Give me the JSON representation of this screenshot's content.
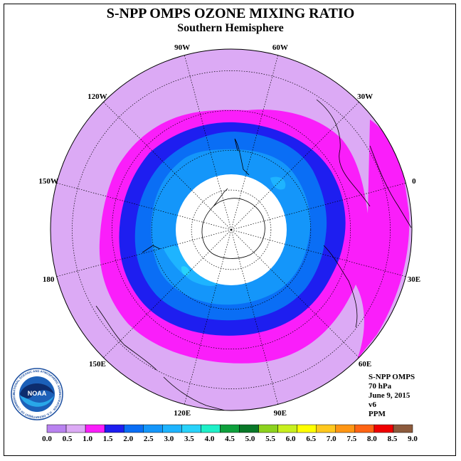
{
  "title": "S-NPP OMPS OZONE MIXING RATIO",
  "subtitle": "Southern Hemisphere",
  "longitude_labels": [
    "90W",
    "60W",
    "30W",
    "0",
    "30E",
    "60E",
    "90E",
    "120E",
    "150E",
    "180",
    "150W",
    "120W"
  ],
  "info": {
    "instrument": "S-NPP OMPS",
    "level": "70 hPa",
    "date": "June 9, 2015",
    "version": "v6",
    "units": "PPM"
  },
  "logo": {
    "text": "NOAA",
    "ring_text": "NATIONAL OCEANIC AND ATMOSPHERIC ADMINISTRATION · U.S. DEPARTMENT OF COMMERCE"
  },
  "colorbar": {
    "ticks": [
      "0.0",
      "0.5",
      "1.0",
      "1.5",
      "2.0",
      "2.5",
      "3.0",
      "3.5",
      "4.0",
      "4.5",
      "5.0",
      "5.5",
      "6.0",
      "6.5",
      "7.0",
      "7.5",
      "8.0",
      "8.5",
      "9.0"
    ],
    "colors": [
      "#b982f0",
      "#dcaaf5",
      "#fa1efa",
      "#1e1ef0",
      "#0a6ef5",
      "#1496fa",
      "#1eb4ff",
      "#28d2fa",
      "#1ef0c8",
      "#0ea03c",
      "#087828",
      "#8cd21e",
      "#c8f01e",
      "#ffff00",
      "#ffc81e",
      "#ff9614",
      "#ff6414",
      "#f00000",
      "#8c5a3c"
    ]
  },
  "map_colors": {
    "level_0.5_1.0": "#dcaaf5",
    "level_1.0_1.5": "#fa1efa",
    "level_1.5_2.0": "#1e1ef0",
    "level_2.0_2.5": "#0a6ef5",
    "level_2.5_3.0": "#1496fa",
    "level_3.0_3.5": "#1eb4ff",
    "level_3.5_4.0": "#28d2fa",
    "no_data": "#ffffff"
  }
}
